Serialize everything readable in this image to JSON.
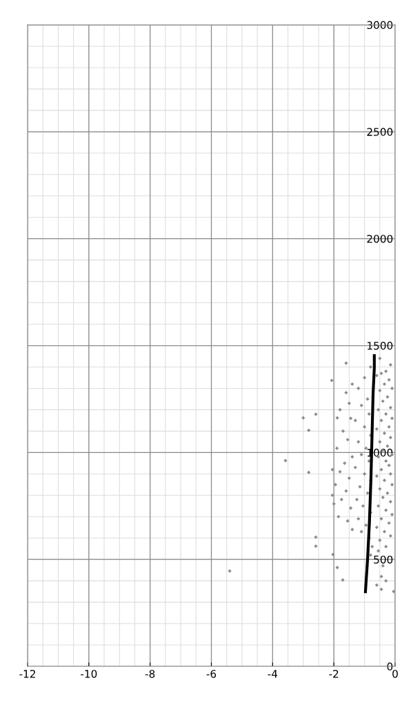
{
  "chart_data": {
    "type": "scatter",
    "xlim": [
      -12,
      0
    ],
    "ylim": [
      0,
      3000
    ],
    "xticks": [
      -12,
      -10,
      -8,
      -6,
      -4,
      -2,
      0
    ],
    "yticks": [
      0,
      500,
      1000,
      1500,
      2000,
      2500,
      3000
    ],
    "grid": true,
    "marker": "diamond",
    "series": [
      {
        "color": "#8c8c8c",
        "x": [
          -5.4,
          -3.58,
          -3.0,
          -2.82,
          -2.59,
          -2.82,
          -2.59,
          -2.59,
          -1.6,
          -2.07,
          -1.89,
          -2.03,
          -1.89,
          -1.71,
          -0.5,
          -0.15,
          -0.3,
          -0.45,
          -0.2,
          -0.6,
          -0.35,
          -0.1,
          -0.5,
          -0.25,
          -0.4,
          -0.15,
          -0.55,
          -0.3,
          -0.1,
          -0.45,
          -0.2,
          -0.6,
          -0.35,
          -0.15,
          -0.5,
          -0.25,
          -0.4,
          -0.1,
          -0.55,
          -0.3,
          -0.2,
          -0.45,
          -0.15,
          -0.6,
          -0.35,
          -0.1,
          -0.5,
          -0.25,
          -0.4,
          -0.15,
          -0.55,
          -0.3,
          -0.1,
          -0.45,
          -0.2,
          -0.6,
          -0.35,
          -0.15,
          -0.5,
          -0.3,
          -0.55,
          -0.4,
          -0.45,
          -0.3,
          -0.6,
          -0.45,
          -0.05,
          -0.8,
          -1.0,
          -1.2,
          -0.9,
          -1.1,
          -0.85,
          -1.3,
          -1.0,
          -0.8,
          -1.2,
          -0.95,
          -1.1,
          -0.85,
          -1.3,
          -1.0,
          -0.8,
          -1.15,
          -0.9,
          -1.25,
          -1.05,
          -0.8,
          -1.2,
          -0.95,
          -1.1,
          -0.85,
          -0.75,
          -0.8,
          -1.4,
          -1.6,
          -1.5,
          -1.8,
          -1.45,
          -1.7,
          -1.55,
          -1.9,
          -1.4,
          -1.65,
          -1.8,
          -1.5,
          -1.95,
          -1.6,
          -1.75,
          -1.45,
          -1.85,
          -1.55,
          -1.4,
          -2.05,
          -2.0,
          -2.05
        ],
        "values": [
          446,
          962,
          1162,
          1104,
          1179,
          907,
          604,
          562,
          1418,
          1337,
          1162,
          523,
          462,
          404,
          1440,
          1410,
          1380,
          1370,
          1340,
          1360,
          1320,
          1300,
          1290,
          1260,
          1240,
          1210,
          1200,
          1180,
          1160,
          1150,
          1120,
          1110,
          1090,
          1070,
          1050,
          1030,
          1010,
          990,
          980,
          960,
          940,
          920,
          900,
          890,
          870,
          850,
          830,
          810,
          790,
          770,
          750,
          730,
          710,
          690,
          670,
          650,
          630,
          610,
          590,
          560,
          540,
          470,
          420,
          400,
          380,
          360,
          350,
          1400,
          1350,
          1300,
          1250,
          1220,
          1180,
          1150,
          1120,
          1080,
          1050,
          1020,
          990,
          960,
          930,
          900,
          870,
          840,
          810,
          780,
          750,
          720,
          690,
          660,
          630,
          600,
          560,
          520,
          1320,
          1280,
          1230,
          1200,
          1160,
          1100,
          1060,
          1020,
          980,
          950,
          910,
          880,
          850,
          820,
          780,
          740,
          700,
          680,
          640,
          800,
          760,
          920
        ]
      },
      {
        "type": "line",
        "color": "#000000",
        "marker": "none",
        "x": [
          -0.97,
          -0.9,
          -0.84,
          -0.79,
          -0.72,
          -0.68,
          -0.68
        ],
        "values": [
          349,
          500,
          672,
          878,
          1275,
          1395,
          1453
        ]
      }
    ]
  }
}
